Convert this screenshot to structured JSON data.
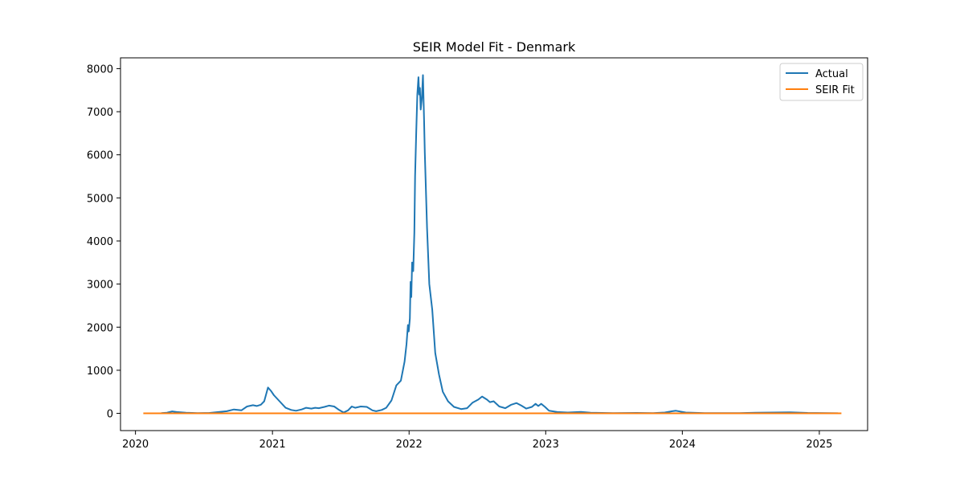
{
  "chart_data": {
    "type": "line",
    "title": "SEIR Model Fit - Denmark",
    "xlabel": "",
    "ylabel": "",
    "x_ticks": [
      "2020",
      "2021",
      "2022",
      "2023",
      "2024",
      "2025"
    ],
    "y_ticks": [
      "0",
      "1000",
      "2000",
      "3000",
      "4000",
      "5000",
      "6000",
      "7000",
      "8000"
    ],
    "xlim": [
      "2019-11-22",
      "2025-05-10"
    ],
    "ylim": [
      -400,
      8250
    ],
    "grid": false,
    "legend_position": "top-right",
    "series": [
      {
        "name": "Actual",
        "color": "#1f77b4",
        "points": [
          [
            "2020-03-10",
            5
          ],
          [
            "2020-03-25",
            15
          ],
          [
            "2020-04-08",
            45
          ],
          [
            "2020-04-20",
            30
          ],
          [
            "2020-05-15",
            15
          ],
          [
            "2020-06-15",
            5
          ],
          [
            "2020-07-15",
            8
          ],
          [
            "2020-08-10",
            30
          ],
          [
            "2020-09-01",
            50
          ],
          [
            "2020-09-20",
            90
          ],
          [
            "2020-10-10",
            70
          ],
          [
            "2020-10-25",
            160
          ],
          [
            "2020-11-10",
            190
          ],
          [
            "2020-11-20",
            170
          ],
          [
            "2020-12-01",
            200
          ],
          [
            "2020-12-10",
            280
          ],
          [
            "2020-12-20",
            600
          ],
          [
            "2020-12-28",
            520
          ],
          [
            "2021-01-05",
            420
          ],
          [
            "2021-01-20",
            280
          ],
          [
            "2021-02-05",
            130
          ],
          [
            "2021-02-20",
            80
          ],
          [
            "2021-03-05",
            60
          ],
          [
            "2021-03-20",
            90
          ],
          [
            "2021-04-01",
            130
          ],
          [
            "2021-04-15",
            110
          ],
          [
            "2021-04-25",
            130
          ],
          [
            "2021-05-05",
            120
          ],
          [
            "2021-05-20",
            150
          ],
          [
            "2021-06-01",
            180
          ],
          [
            "2021-06-15",
            160
          ],
          [
            "2021-06-28",
            80
          ],
          [
            "2021-07-10",
            20
          ],
          [
            "2021-07-22",
            70
          ],
          [
            "2021-08-01",
            160
          ],
          [
            "2021-08-10",
            130
          ],
          [
            "2021-08-25",
            160
          ],
          [
            "2021-09-10",
            150
          ],
          [
            "2021-09-25",
            70
          ],
          [
            "2021-10-05",
            50
          ],
          [
            "2021-10-20",
            80
          ],
          [
            "2021-11-01",
            130
          ],
          [
            "2021-11-15",
            300
          ],
          [
            "2021-11-28",
            650
          ],
          [
            "2021-12-10",
            760
          ],
          [
            "2021-12-20",
            1200
          ],
          [
            "2021-12-25",
            1600
          ],
          [
            "2021-12-29",
            2050
          ],
          [
            "2021-12-31",
            1900
          ],
          [
            "2022-01-03",
            2200
          ],
          [
            "2022-01-05",
            3050
          ],
          [
            "2022-01-07",
            2700
          ],
          [
            "2022-01-09",
            3500
          ],
          [
            "2022-01-12",
            3300
          ],
          [
            "2022-01-15",
            4200
          ],
          [
            "2022-01-17",
            5500
          ],
          [
            "2022-01-20",
            6500
          ],
          [
            "2022-01-23",
            7400
          ],
          [
            "2022-01-26",
            7800
          ],
          [
            "2022-01-28",
            7400
          ],
          [
            "2022-01-30",
            7550
          ],
          [
            "2022-02-01",
            7050
          ],
          [
            "2022-02-04",
            7300
          ],
          [
            "2022-02-07",
            7850
          ],
          [
            "2022-02-10",
            6800
          ],
          [
            "2022-02-12",
            6050
          ],
          [
            "2022-02-18",
            4300
          ],
          [
            "2022-02-24",
            3000
          ],
          [
            "2022-03-04",
            2400
          ],
          [
            "2022-03-12",
            1400
          ],
          [
            "2022-03-22",
            900
          ],
          [
            "2022-04-01",
            500
          ],
          [
            "2022-04-15",
            280
          ],
          [
            "2022-05-01",
            150
          ],
          [
            "2022-05-20",
            100
          ],
          [
            "2022-06-05",
            120
          ],
          [
            "2022-06-20",
            250
          ],
          [
            "2022-07-05",
            320
          ],
          [
            "2022-07-15",
            390
          ],
          [
            "2022-07-28",
            320
          ],
          [
            "2022-08-05",
            260
          ],
          [
            "2022-08-15",
            280
          ],
          [
            "2022-08-30",
            160
          ],
          [
            "2022-09-15",
            120
          ],
          [
            "2022-10-01",
            200
          ],
          [
            "2022-10-15",
            240
          ],
          [
            "2022-10-28",
            180
          ],
          [
            "2022-11-10",
            110
          ],
          [
            "2022-11-25",
            150
          ],
          [
            "2022-12-05",
            220
          ],
          [
            "2022-12-12",
            170
          ],
          [
            "2022-12-20",
            220
          ],
          [
            "2022-12-30",
            150
          ],
          [
            "2023-01-10",
            60
          ],
          [
            "2023-02-01",
            30
          ],
          [
            "2023-03-01",
            20
          ],
          [
            "2023-04-05",
            35
          ],
          [
            "2023-05-01",
            15
          ],
          [
            "2023-07-01",
            5
          ],
          [
            "2023-09-01",
            10
          ],
          [
            "2023-10-15",
            5
          ],
          [
            "2023-11-15",
            20
          ],
          [
            "2023-12-05",
            50
          ],
          [
            "2023-12-15",
            60
          ],
          [
            "2024-01-10",
            20
          ],
          [
            "2024-03-01",
            5
          ],
          [
            "2024-06-01",
            5
          ],
          [
            "2024-07-15",
            15
          ],
          [
            "2024-09-01",
            20
          ],
          [
            "2024-10-15",
            25
          ],
          [
            "2024-12-01",
            10
          ],
          [
            "2025-02-20",
            3
          ]
        ]
      },
      {
        "name": "SEIR Fit",
        "color": "#ff7f0e",
        "points": [
          [
            "2020-01-22",
            0
          ],
          [
            "2025-03-01",
            0
          ]
        ]
      }
    ]
  }
}
